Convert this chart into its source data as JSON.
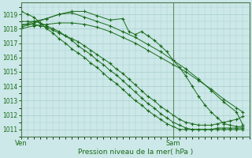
{
  "title": "",
  "xlabel": "Pression niveau de la mer( hPa )",
  "ylabel": "",
  "bg_color": "#cce8e8",
  "grid_color": "#aacccc",
  "line_color": "#1a6b1a",
  "marker_color": "#1a6b1a",
  "ylim": [
    1010.5,
    1019.8
  ],
  "yticks": [
    1011,
    1012,
    1013,
    1014,
    1015,
    1016,
    1017,
    1018,
    1019
  ],
  "xtick_labels": [
    "Ven",
    "Sam"
  ],
  "xtick_positions": [
    0,
    24
  ],
  "xlim": [
    0,
    36
  ],
  "sam_vline": 24,
  "series": [
    [
      0,
      1019.2,
      1,
      1019.0,
      2,
      1018.8,
      3,
      1018.4,
      4,
      1018.0,
      5,
      1017.7,
      6,
      1017.3,
      7,
      1017.0,
      8,
      1016.6,
      9,
      1016.3,
      10,
      1016.0,
      11,
      1015.6,
      12,
      1015.3,
      13,
      1014.9,
      14,
      1014.5,
      15,
      1014.2,
      16,
      1013.8,
      17,
      1013.4,
      18,
      1013.0,
      19,
      1012.7,
      20,
      1012.3,
      21,
      1012.0,
      22,
      1011.7,
      23,
      1011.4,
      24,
      1011.2,
      25,
      1011.0,
      26,
      1011.0,
      27,
      1011.0,
      28,
      1011.0,
      29,
      1011.0,
      30,
      1011.0,
      31,
      1011.1,
      32,
      1011.1,
      33,
      1011.1,
      34,
      1011.1,
      35,
      1011.1
    ],
    [
      0,
      1018.5,
      1,
      1018.5,
      2,
      1018.5,
      3,
      1018.4,
      4,
      1018.2,
      5,
      1018.0,
      6,
      1017.8,
      7,
      1017.5,
      8,
      1017.2,
      9,
      1016.8,
      10,
      1016.5,
      11,
      1016.2,
      12,
      1015.8,
      13,
      1015.5,
      14,
      1015.1,
      15,
      1014.8,
      16,
      1014.4,
      17,
      1014.0,
      18,
      1013.6,
      19,
      1013.2,
      20,
      1012.8,
      21,
      1012.5,
      22,
      1012.1,
      23,
      1011.8,
      24,
      1011.5,
      25,
      1011.3,
      26,
      1011.1,
      27,
      1011.0,
      28,
      1011.0,
      29,
      1011.0,
      30,
      1011.0,
      31,
      1011.0,
      32,
      1011.0,
      33,
      1011.0,
      34,
      1011.0,
      35,
      1011.0
    ],
    [
      0,
      1018.3,
      1,
      1018.3,
      2,
      1018.3,
      3,
      1018.2,
      4,
      1018.1,
      5,
      1017.9,
      6,
      1017.7,
      7,
      1017.5,
      8,
      1017.3,
      9,
      1017.1,
      10,
      1016.8,
      11,
      1016.5,
      12,
      1016.2,
      13,
      1015.9,
      14,
      1015.6,
      15,
      1015.2,
      16,
      1014.9,
      17,
      1014.5,
      18,
      1014.1,
      19,
      1013.7,
      20,
      1013.3,
      21,
      1013.0,
      22,
      1012.6,
      23,
      1012.3,
      24,
      1012.0,
      25,
      1011.7,
      26,
      1011.5,
      27,
      1011.4,
      28,
      1011.3,
      29,
      1011.3,
      30,
      1011.3,
      31,
      1011.4,
      32,
      1011.5,
      33,
      1011.6,
      34,
      1011.7,
      35,
      1011.9
    ],
    [
      0,
      1018.1,
      2,
      1018.4,
      4,
      1018.7,
      6,
      1019.0,
      8,
      1019.1,
      10,
      1018.8,
      12,
      1018.5,
      14,
      1018.2,
      16,
      1017.8,
      18,
      1017.4,
      20,
      1016.9,
      22,
      1016.4,
      24,
      1015.8,
      26,
      1015.2,
      28,
      1014.5,
      30,
      1013.7,
      32,
      1012.9,
      34,
      1012.2,
      35,
      1011.3
    ],
    [
      0,
      1018.0,
      2,
      1018.2,
      4,
      1018.3,
      6,
      1018.4,
      8,
      1018.4,
      10,
      1018.3,
      12,
      1018.1,
      14,
      1017.8,
      16,
      1017.4,
      18,
      1017.0,
      20,
      1016.5,
      22,
      1016.0,
      24,
      1015.5,
      26,
      1015.0,
      28,
      1014.4,
      30,
      1013.8,
      32,
      1013.1,
      34,
      1012.5,
      35,
      1012.2
    ],
    [
      0,
      1018.2,
      2,
      1018.5,
      4,
      1018.7,
      6,
      1019.0,
      8,
      1019.2,
      10,
      1019.2,
      12,
      1018.9,
      14,
      1018.6,
      16,
      1018.7,
      17,
      1017.8,
      18,
      1017.6,
      19,
      1017.8,
      20,
      1017.5,
      21,
      1017.2,
      22,
      1016.8,
      23,
      1016.4,
      24,
      1015.8,
      25,
      1015.3,
      26,
      1014.7,
      27,
      1014.0,
      28,
      1013.3,
      29,
      1012.7,
      30,
      1012.2,
      31,
      1011.8,
      32,
      1011.4,
      33,
      1011.3,
      34,
      1011.2,
      35,
      1011.2
    ]
  ]
}
